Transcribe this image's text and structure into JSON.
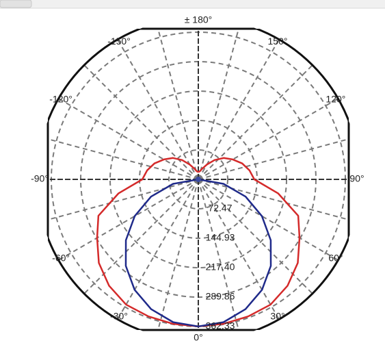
{
  "chart_data": {
    "type": "polar",
    "x": [
      -180,
      -170,
      -160,
      -150,
      -140,
      -130,
      -120,
      -110,
      -100,
      -90,
      -80,
      -70,
      -60,
      -50,
      -40,
      -30,
      -20,
      -10,
      0,
      10,
      20,
      30,
      40,
      50,
      60,
      70,
      80,
      90,
      100,
      110,
      120,
      130,
      140,
      150,
      160,
      170,
      180
    ],
    "series": [
      {
        "color": "#d42a2a",
        "values": [
          18,
          20,
          28,
          42,
          62,
          82,
          98,
          115,
          128,
          138,
          200,
          262,
          288,
          320,
          342,
          356,
          359,
          361,
          362,
          361,
          359,
          356,
          342,
          320,
          288,
          262,
          200,
          138,
          128,
          115,
          98,
          82,
          62,
          42,
          28,
          20,
          18
        ]
      },
      {
        "color": "#1f2a8a",
        "values": [
          null,
          null,
          null,
          null,
          null,
          null,
          null,
          null,
          null,
          0,
          63,
          124,
          181,
          233,
          278,
          314,
          340,
          357,
          362,
          357,
          340,
          314,
          278,
          233,
          181,
          124,
          63,
          0,
          null,
          null,
          null,
          null,
          null,
          null,
          null,
          null,
          null
        ]
      }
    ],
    "rlim": [
      0,
      362.33
    ],
    "rticks": [
      72.47,
      144.93,
      {
        "value": 217.4,
        "label": "217.40"
      },
      289.86,
      362.33
    ],
    "xticks": [
      {
        "value": 0,
        "label": "0°"
      },
      {
        "value": 30,
        "label": "30°"
      },
      {
        "value": 60,
        "label": "60°"
      },
      {
        "value": 90,
        "label": "90°"
      },
      {
        "value": 120,
        "label": "120°"
      },
      {
        "value": 150,
        "label": "150°"
      },
      {
        "value": 180,
        "label": "± 180°"
      },
      {
        "value": -150,
        "label": "-150°"
      },
      {
        "value": -120,
        "label": "-120°"
      },
      {
        "value": -90,
        "label": "-90°"
      },
      {
        "value": -60,
        "label": "-60°"
      },
      {
        "value": -30,
        "label": "-30°"
      }
    ],
    "grid": true
  }
}
